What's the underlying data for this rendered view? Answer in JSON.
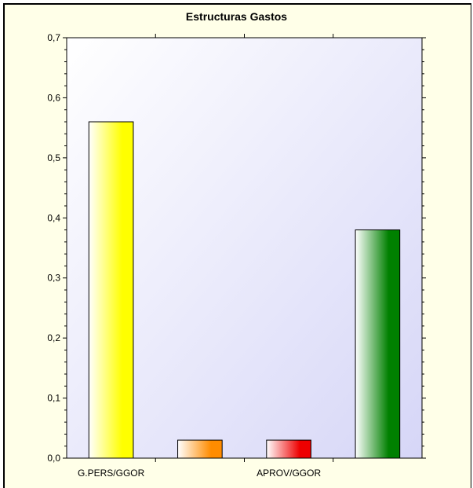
{
  "chart_data": {
    "type": "bar",
    "title": "Estructuras Gastos",
    "xlabel": "",
    "ylabel": "",
    "categories": [
      "G.PERS/GGOR",
      "",
      "APROV/GGOR",
      ""
    ],
    "values": [
      0.56,
      0.03,
      0.03,
      0.38
    ],
    "ylim": [
      0,
      0.7
    ],
    "yticks": [
      "0,0",
      "0,1",
      "0,2",
      "0,3",
      "0,4",
      "0,5",
      "0,6",
      "0,7"
    ],
    "grid": false,
    "legend": "none",
    "colors": [
      "#ffff00",
      "#ff8c00",
      "#ee0000",
      "#008000"
    ],
    "plot_background": [
      "#ffffff",
      "#d8d8f8"
    ]
  }
}
